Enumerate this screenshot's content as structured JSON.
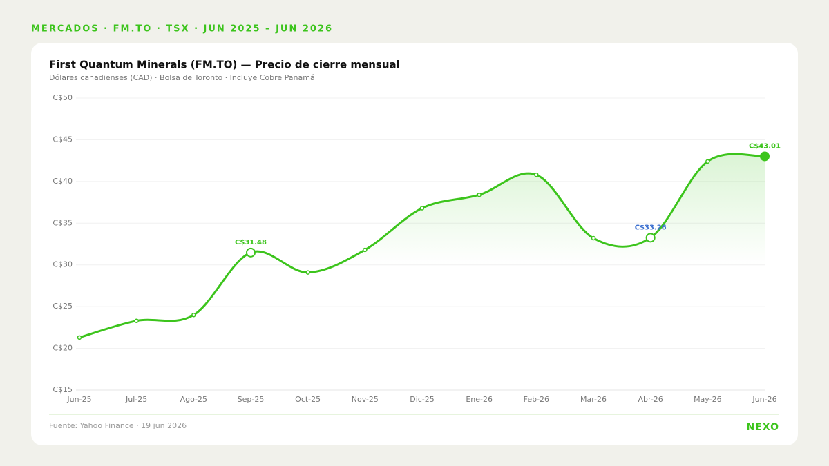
{
  "header": "MERCADOS · FM.TO · TSX · JUN 2025 – JUN 2026",
  "chart_data": {
    "type": "line",
    "title": "First Quantum Minerals (FM.TO) — Precio de cierre mensual",
    "subtitle": "Dólares canadienses (CAD) · Bolsa de Toronto · Incluye Cobre Panamá",
    "categories": [
      "Jun-25",
      "Jul-25",
      "Ago-25",
      "Sep-25",
      "Oct-25",
      "Nov-25",
      "Dic-25",
      "Ene-26",
      "Feb-26",
      "Mar-26",
      "Abr-26",
      "May-26",
      "Jun-26"
    ],
    "series": [
      {
        "name": "FM.TO",
        "color": "#3cc41c",
        "values": [
          21.3,
          23.3,
          24.0,
          31.48,
          29.1,
          31.8,
          36.8,
          38.4,
          40.8,
          33.2,
          33.26,
          42.4,
          43.01
        ],
        "value_labels": [
          null,
          null,
          null,
          "C$31.48",
          null,
          null,
          null,
          null,
          null,
          null,
          "C$33.26",
          null,
          "C$43.01"
        ],
        "value_label_colors": [
          null,
          null,
          null,
          "#3cc41c",
          null,
          null,
          null,
          null,
          null,
          null,
          "#3b6fd0",
          null,
          "#3cc41c"
        ]
      }
    ],
    "ylim": [
      15,
      50
    ],
    "yticks": [
      {
        "value": 15,
        "label": "C$15"
      },
      {
        "value": 20,
        "label": "C$20"
      },
      {
        "value": 25,
        "label": "C$25"
      },
      {
        "value": 30,
        "label": "C$30"
      },
      {
        "value": 35,
        "label": "C$35"
      },
      {
        "value": 40,
        "label": "C$40"
      },
      {
        "value": 45,
        "label": "C$45"
      },
      {
        "value": 50,
        "label": "C$50"
      }
    ],
    "grid": true,
    "source": "Fuente: Yahoo Finance · 19 jun 2026",
    "brand": "NEXO"
  }
}
